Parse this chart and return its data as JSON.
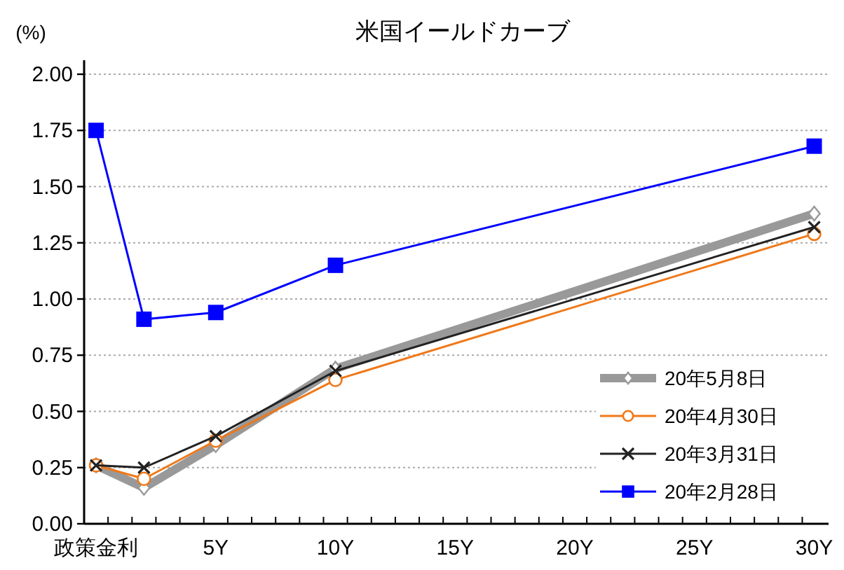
{
  "chart_data": {
    "type": "line",
    "title": "米国イールドカーブ",
    "ylabel": "(%)",
    "x": [
      0,
      2,
      5,
      10,
      30
    ],
    "xlim": [
      -0.5,
      30.6
    ],
    "xticks": [
      {
        "value": 0,
        "label": "政策金利"
      },
      {
        "value": 5,
        "label": "5Y"
      },
      {
        "value": 10,
        "label": "10Y"
      },
      {
        "value": 15,
        "label": "15Y"
      },
      {
        "value": 20,
        "label": "20Y"
      },
      {
        "value": 25,
        "label": "25Y"
      },
      {
        "value": 30,
        "label": "30Y"
      },
      {
        "value": 0.5,
        "label": null
      },
      {
        "value": 1.5,
        "label": null
      },
      {
        "value": 2.5,
        "label": null
      },
      {
        "value": 3.5,
        "label": null
      },
      {
        "value": 4.5,
        "label": null
      },
      {
        "value": 5.5,
        "label": null
      },
      {
        "value": 6.5,
        "label": null
      },
      {
        "value": 7.5,
        "label": null
      },
      {
        "value": 8.5,
        "label": null
      },
      {
        "value": 9.5,
        "label": null
      },
      {
        "value": 10.5,
        "label": null
      },
      {
        "value": 11.5,
        "label": null
      },
      {
        "value": 12.5,
        "label": null
      },
      {
        "value": 13.5,
        "label": null
      },
      {
        "value": 14.5,
        "label": null
      },
      {
        "value": 15.5,
        "label": null
      },
      {
        "value": 16.5,
        "label": null
      },
      {
        "value": 17.5,
        "label": null
      },
      {
        "value": 18.5,
        "label": null
      },
      {
        "value": 19.5,
        "label": null
      },
      {
        "value": 20.5,
        "label": null
      },
      {
        "value": 21.5,
        "label": null
      },
      {
        "value": 22.5,
        "label": null
      },
      {
        "value": 23.5,
        "label": null
      },
      {
        "value": 24.5,
        "label": null
      },
      {
        "value": 25.5,
        "label": null
      },
      {
        "value": 26.5,
        "label": null
      },
      {
        "value": 27.5,
        "label": null
      },
      {
        "value": 28.5,
        "label": null
      },
      {
        "value": 29.5,
        "label": null
      }
    ],
    "ylim": [
      0,
      2
    ],
    "yticks": [
      {
        "value": 0,
        "label": "0.00"
      },
      {
        "value": 0.25,
        "label": "0.25"
      },
      {
        "value": 0.5,
        "label": "0.50"
      },
      {
        "value": 0.75,
        "label": "0.75"
      },
      {
        "value": 1,
        "label": "1.00"
      },
      {
        "value": 1.25,
        "label": "1.25"
      },
      {
        "value": 1.5,
        "label": "1.50"
      },
      {
        "value": 1.75,
        "label": "1.75"
      },
      {
        "value": 2,
        "label": "2.00"
      }
    ],
    "grid": "y",
    "legend": "bottom right",
    "series": [
      {
        "name": "20年5月8日",
        "color": "#999999",
        "marker": "diamond",
        "values": [
          0.26,
          0.16,
          0.35,
          0.69,
          1.38
        ]
      },
      {
        "name": "20年4月30日",
        "color": "#f07818",
        "marker": "circle",
        "values": [
          0.26,
          0.2,
          0.37,
          0.64,
          1.29
        ]
      },
      {
        "name": "20年3月31日",
        "color": "#222222",
        "marker": "cross",
        "values": [
          0.26,
          0.25,
          0.39,
          0.68,
          1.32
        ]
      },
      {
        "name": "20年2月28日",
        "color": "#0000ff",
        "marker": "square",
        "values": [
          1.75,
          0.91,
          0.94,
          1.15,
          1.68
        ]
      }
    ]
  }
}
